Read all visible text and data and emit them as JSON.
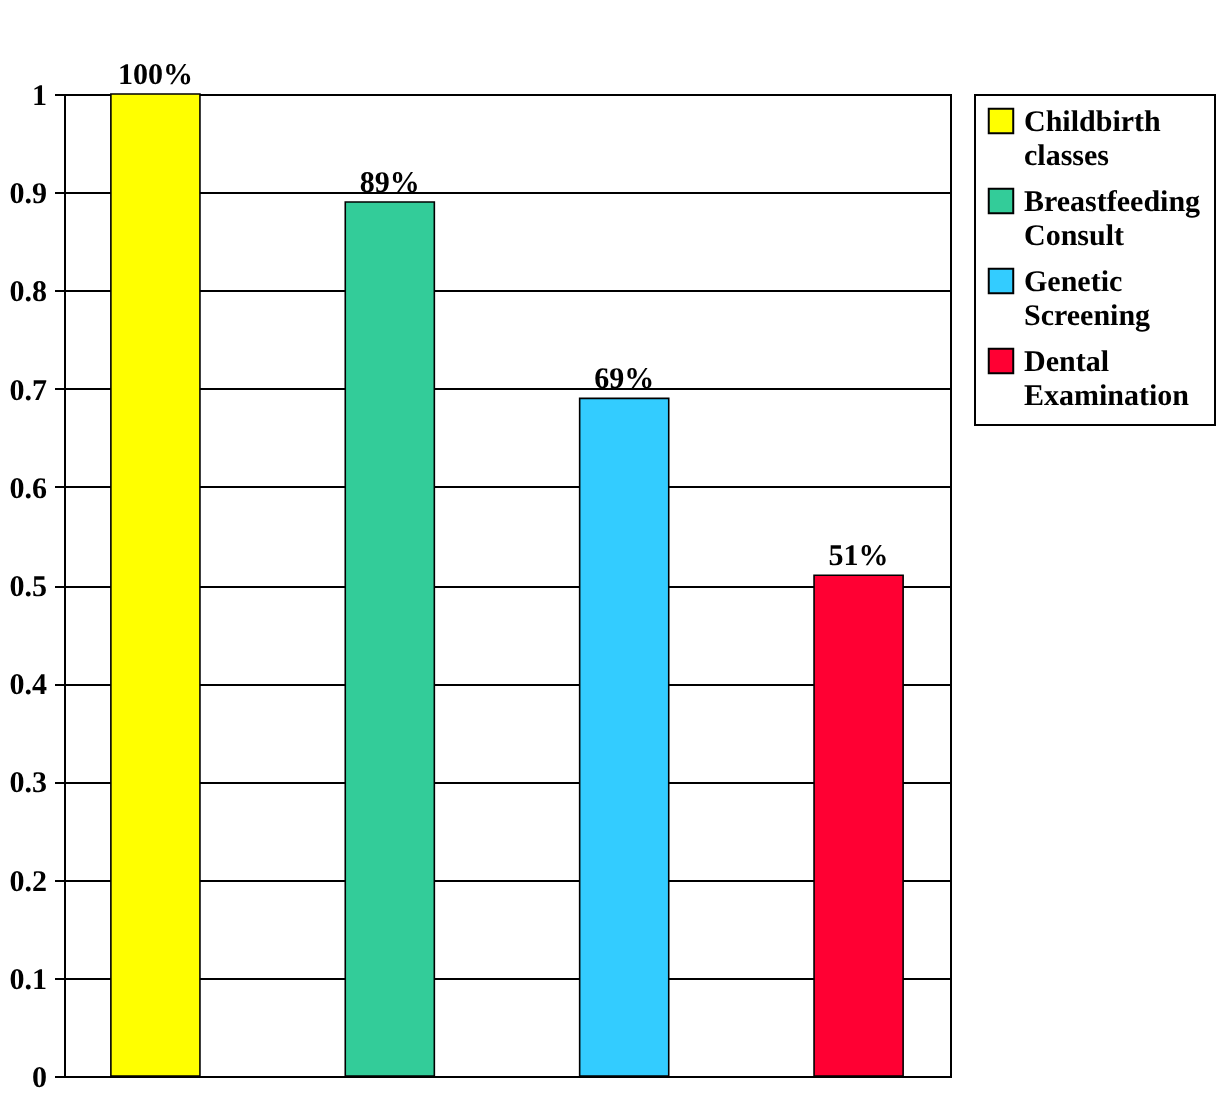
{
  "chart_data": {
    "type": "bar",
    "categories": [
      null,
      null,
      null,
      null
    ],
    "series": [
      {
        "name": "Childbirth classes",
        "color": "#ffff00",
        "values": [
          1.0,
          null,
          null,
          null
        ],
        "value_labels": [
          "100%",
          null,
          null,
          null
        ]
      },
      {
        "name": "Breastfeeding Consult",
        "color": "#33cc99",
        "values": [
          null,
          0.89,
          null,
          null
        ],
        "value_labels": [
          null,
          "89%",
          null,
          null
        ]
      },
      {
        "name": "Genetic Screening",
        "color": "#33ccff",
        "values": [
          null,
          null,
          0.69,
          null
        ],
        "value_labels": [
          null,
          null,
          "69%",
          null
        ]
      },
      {
        "name": "Dental Examination",
        "color": "#ff0033",
        "values": [
          null,
          null,
          null,
          0.51
        ],
        "value_labels": [
          null,
          null,
          null,
          "51%"
        ]
      }
    ],
    "ylim": [
      0,
      1
    ],
    "yticks": [
      0,
      0.1,
      0.2,
      0.3,
      0.4,
      0.5,
      0.6,
      0.7,
      0.8,
      0.9,
      {
        "value": 1,
        "label": "1"
      }
    ],
    "grid": "y",
    "legend": "right"
  }
}
